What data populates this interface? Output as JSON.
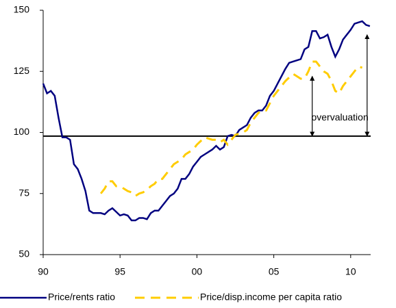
{
  "chart_data": {
    "type": "line",
    "x": [
      1990,
      1990.25,
      1990.5,
      1990.75,
      1991,
      1991.25,
      1991.5,
      1991.75,
      1992,
      1992.25,
      1992.5,
      1992.75,
      1993,
      1993.25,
      1993.5,
      1993.75,
      1994,
      1994.25,
      1994.5,
      1994.75,
      1995,
      1995.25,
      1995.5,
      1995.75,
      1996,
      1996.25,
      1996.5,
      1996.75,
      1997,
      1997.25,
      1997.5,
      1997.75,
      1998,
      1998.25,
      1998.5,
      1998.75,
      1999,
      1999.25,
      1999.5,
      1999.75,
      2000,
      2000.25,
      2000.5,
      2000.75,
      2001,
      2001.25,
      2001.5,
      2001.75,
      2002,
      2002.25,
      2002.5,
      2002.75,
      2003,
      2003.25,
      2003.5,
      2003.75,
      2004,
      2004.25,
      2004.5,
      2004.75,
      2005,
      2005.25,
      2005.5,
      2005.75,
      2006,
      2006.25,
      2006.5,
      2006.75,
      2007,
      2007.25,
      2007.5,
      2007.75,
      2008,
      2008.25,
      2008.5,
      2008.75,
      2009,
      2009.25,
      2009.5,
      2009.75,
      2010,
      2010.25,
      2010.5,
      2010.75,
      2011,
      2011.25
    ],
    "series": [
      {
        "name": "Price/rents ratio",
        "color": "#000080",
        "dash": false,
        "values": [
          120,
          116,
          117,
          115,
          106,
          98,
          98,
          97,
          87,
          85,
          81,
          76,
          68,
          67,
          67,
          67,
          66.5,
          68,
          69,
          67.5,
          66,
          66.5,
          66,
          64,
          64,
          65,
          65,
          64.5,
          67,
          68,
          68,
          70,
          72,
          74,
          75,
          77,
          81,
          81,
          83,
          86,
          88,
          90,
          91,
          92,
          93,
          94.5,
          93,
          94,
          98.5,
          99,
          98.5,
          101,
          102,
          103,
          106,
          108,
          109,
          109,
          111,
          115,
          117,
          120,
          123,
          126,
          128.5,
          129,
          129.5,
          130,
          134,
          135,
          141.5,
          141.5,
          138.5,
          139,
          140,
          135,
          131,
          134,
          138,
          140,
          142,
          144.5,
          145,
          145.5,
          144,
          143.5
        ]
      },
      {
        "name": "Price/disp.income per capita ratio",
        "color": "#FFCC00",
        "dash": true,
        "values": [
          null,
          null,
          null,
          null,
          null,
          null,
          null,
          null,
          null,
          null,
          null,
          null,
          null,
          null,
          null,
          75,
          77,
          80,
          80,
          78,
          78,
          77,
          76,
          75.5,
          74,
          75,
          75.5,
          76.5,
          78,
          79,
          81,
          81,
          83,
          85,
          87,
          88,
          89,
          91,
          92,
          93,
          95,
          96.5,
          98,
          97.5,
          97,
          97,
          96,
          97,
          95,
          97,
          99,
          99.5,
          100,
          101,
          104,
          106,
          108,
          109,
          109,
          112,
          115,
          117,
          119,
          121,
          122.5,
          124,
          123,
          122,
          122,
          125,
          129,
          129,
          127,
          125,
          124,
          121,
          117,
          116,
          119,
          121,
          123,
          125,
          127,
          126.5,
          null,
          null
        ]
      }
    ],
    "xlim": [
      1990,
      2011.3
    ],
    "xticks": [
      {
        "value": 1990,
        "label": "90"
      },
      {
        "value": 1995,
        "label": "95"
      },
      {
        "value": 2000,
        "label": "00"
      },
      {
        "value": 2005,
        "label": "05"
      },
      {
        "value": 2010,
        "label": "10"
      }
    ],
    "ylim": [
      50,
      150
    ],
    "yticks": [
      50,
      75,
      100,
      125,
      150
    ],
    "hline": 98.5,
    "annotation": {
      "text": "overvaluation",
      "x": 2009.3,
      "y": 106
    },
    "arrows": [
      {
        "x": 2007.5,
        "y": [
          98.5,
          123
        ]
      },
      {
        "x": 2011.07,
        "y": [
          98.5,
          140
        ]
      }
    ],
    "legend": "bottom"
  }
}
